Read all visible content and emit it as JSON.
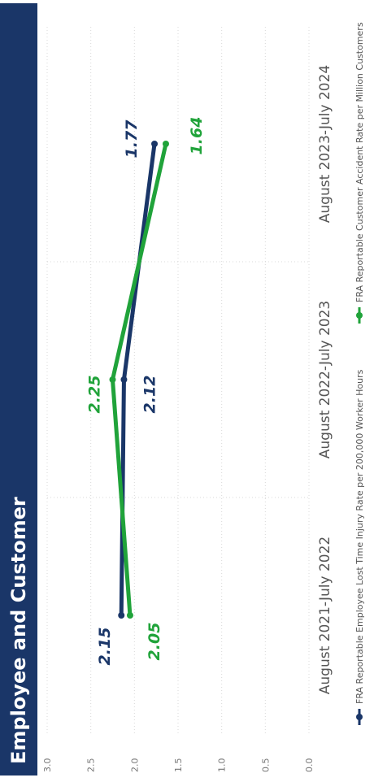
{
  "title": "Employee and Customer",
  "colors": {
    "header_bg": "#1a3668",
    "employee": "#1a3668",
    "customer": "#20a33a",
    "axis_text": "#777777",
    "grid": "#d9d9d9"
  },
  "chart_data": {
    "type": "line",
    "categories": [
      "August 2021-July 2022",
      "August 2022-July 2023",
      "August 2023-July 2024"
    ],
    "ylim": [
      0,
      3.0
    ],
    "yticks": [
      "0.0",
      "0.5",
      "1.0",
      "1.5",
      "2.0",
      "2.5",
      "3.0"
    ],
    "series": [
      {
        "name": "FRA Reportable Employee Lost Time Injury Rate per 200,000 Worker Hours",
        "values": [
          2.15,
          2.12,
          1.77
        ],
        "labels": [
          "2.15",
          "2.12",
          "1.77"
        ]
      },
      {
        "name": "FRA Reportable Customer Accident Rate per Million Customers",
        "values": [
          2.05,
          2.25,
          1.64
        ],
        "labels": [
          "2.05",
          "2.25",
          "1.64"
        ]
      }
    ],
    "legend": "bottom",
    "grid": true
  }
}
